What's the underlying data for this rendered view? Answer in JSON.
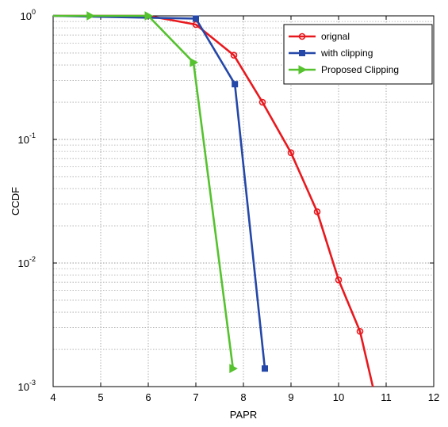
{
  "chart_data": {
    "type": "line",
    "xlabel": "PAPR",
    "ylabel": "CCDF",
    "xlim": [
      4,
      12
    ],
    "ylim": [
      0.001,
      1
    ],
    "yscale": "log",
    "grid": true,
    "legend_position": "top-right",
    "x_ticks": [
      "4",
      "5",
      "6",
      "7",
      "8",
      "9",
      "10",
      "11",
      "12"
    ],
    "y_ticks": [
      {
        "base": "10",
        "exp": "0"
      },
      {
        "base": "10",
        "exp": "-1"
      },
      {
        "base": "10",
        "exp": "-2"
      },
      {
        "base": "10",
        "exp": "-3"
      }
    ],
    "series": [
      {
        "name": "orignal",
        "color": "#e8191e",
        "marker": "circle",
        "points": [
          [
            4,
            1
          ],
          [
            6,
            1
          ],
          [
            7,
            0.85
          ],
          [
            7.8,
            0.48
          ],
          [
            8.4,
            0.2
          ],
          [
            9.0,
            0.078
          ],
          [
            9.55,
            0.026
          ],
          [
            10.0,
            0.0073
          ],
          [
            10.45,
            0.0028
          ],
          [
            10.72,
            0.001
          ]
        ],
        "marked": [
          false,
          false,
          true,
          true,
          true,
          true,
          true,
          true,
          true,
          false
        ]
      },
      {
        "name": "with clipping",
        "color": "#2447a8",
        "marker": "square",
        "points": [
          [
            4,
            1
          ],
          [
            7.0,
            0.95
          ],
          [
            7.82,
            0.28
          ],
          [
            8.45,
            0.0014
          ]
        ],
        "marked": [
          false,
          true,
          true,
          true
        ]
      },
      {
        "name": "Proposed Clipping",
        "color": "#55c22e",
        "marker": "triangle-right",
        "points": [
          [
            4,
            1
          ],
          [
            4.78,
            1
          ],
          [
            6.0,
            1
          ],
          [
            6.95,
            0.42
          ],
          [
            7.78,
            0.0014
          ]
        ],
        "marked": [
          false,
          true,
          true,
          true,
          true
        ]
      }
    ]
  }
}
